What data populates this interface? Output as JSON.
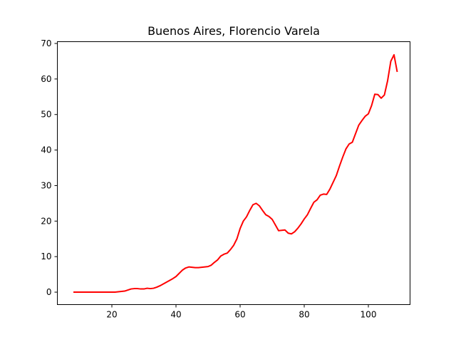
{
  "chart_data": {
    "type": "line",
    "title": "Buenos Aires, Florencio Varela",
    "xlabel": "",
    "ylabel": "",
    "xlim": [
      3,
      113
    ],
    "ylim": [
      -3.5,
      70.5
    ],
    "xticks": [
      20,
      40,
      60,
      80,
      100
    ],
    "yticks": [
      0,
      10,
      20,
      30,
      40,
      50,
      60,
      70
    ],
    "grid": false,
    "series": [
      {
        "color": "#ff0000",
        "x": [
          8,
          10,
          12,
          14,
          16,
          18,
          20,
          21,
          22,
          24,
          25,
          26,
          27,
          28,
          29,
          30,
          31,
          32,
          33,
          34,
          35,
          36,
          37,
          38,
          39,
          40,
          41,
          42,
          43,
          44,
          45,
          46,
          47,
          48,
          49,
          50,
          51,
          52,
          53,
          54,
          55,
          56,
          57,
          58,
          59,
          60,
          61,
          62,
          63,
          64,
          65,
          66,
          67,
          68,
          69,
          70,
          71,
          72,
          73,
          74,
          75,
          76,
          77,
          78,
          79,
          80,
          81,
          82,
          83,
          84,
          85,
          86,
          87,
          88,
          89,
          90,
          91,
          92,
          93,
          94,
          95,
          96,
          97,
          98,
          99,
          100,
          101,
          102,
          103,
          104,
          105,
          106,
          107,
          108,
          109
        ],
        "values": [
          0,
          0,
          0,
          0,
          0,
          0,
          0,
          0,
          0.1,
          0.3,
          0.6,
          0.9,
          1.0,
          1.0,
          0.9,
          0.9,
          1.1,
          1.0,
          1.1,
          1.4,
          1.8,
          2.3,
          2.8,
          3.3,
          3.8,
          4.4,
          5.3,
          6.2,
          6.8,
          7.1,
          7.0,
          6.9,
          6.9,
          7.0,
          7.1,
          7.2,
          7.6,
          8.4,
          9.1,
          10.2,
          10.7,
          11.0,
          12.0,
          13.2,
          15.0,
          17.9,
          20.0,
          21.2,
          23.0,
          24.6,
          25.0,
          24.3,
          23.0,
          21.8,
          21.3,
          20.5,
          18.9,
          17.3,
          17.4,
          17.5,
          16.6,
          16.4,
          17.0,
          18.0,
          19.2,
          20.6,
          21.8,
          23.6,
          25.3,
          26.0,
          27.3,
          27.6,
          27.5,
          29.0,
          30.9,
          32.8,
          35.5,
          38.0,
          40.3,
          41.7,
          42.2,
          44.6,
          47.0,
          48.3,
          49.5,
          50.2,
          52.5,
          55.7,
          55.6,
          54.6,
          55.5,
          59.5,
          65.0,
          66.8,
          62.0
        ]
      }
    ]
  }
}
